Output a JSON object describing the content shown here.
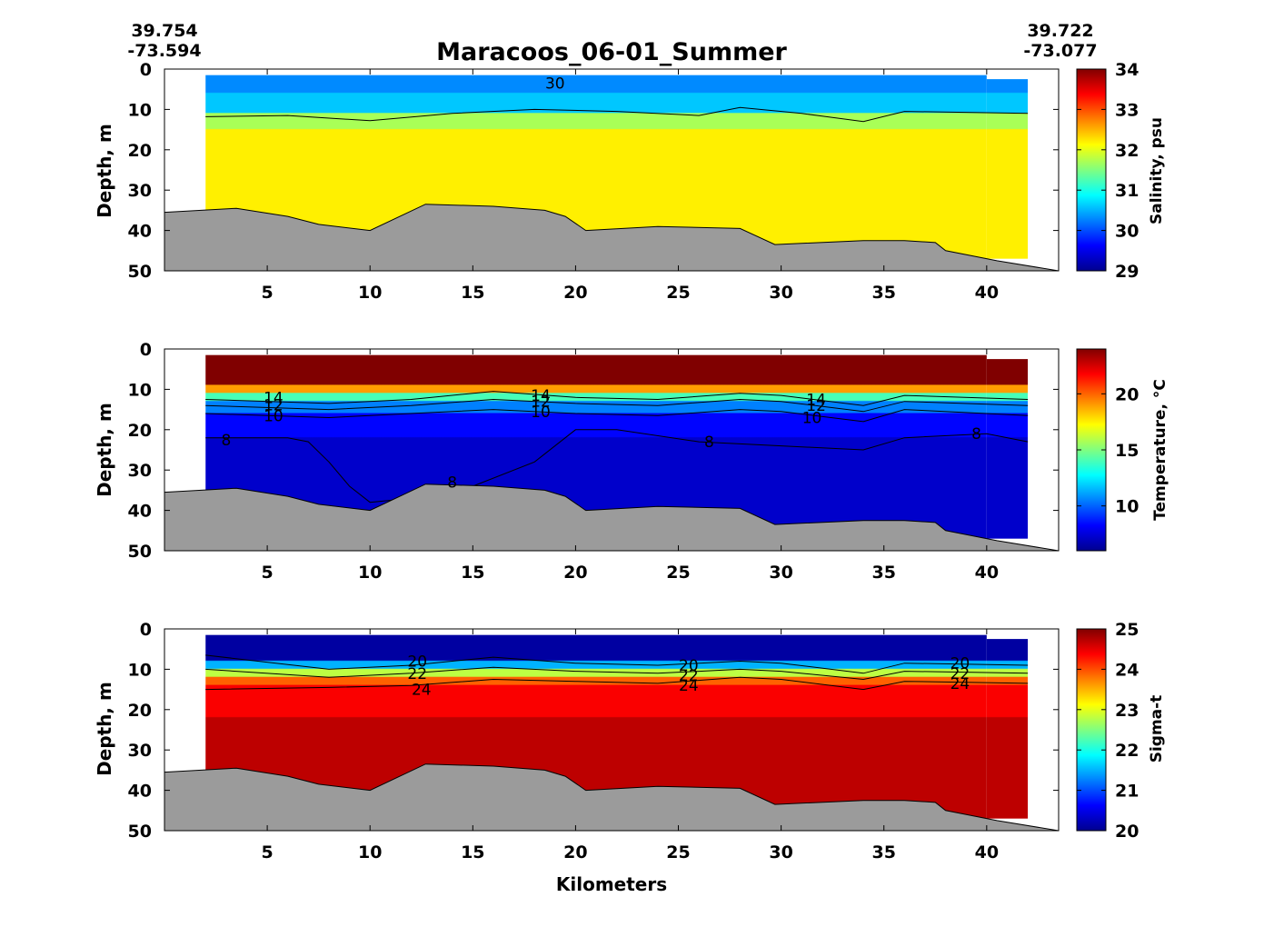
{
  "figure": {
    "title": "Maracoos_06-01_Summer",
    "start_coord": {
      "lat": "39.754",
      "lon": "-73.594"
    },
    "end_coord": {
      "lat": "39.722",
      "lon": "-73.077"
    },
    "xlabel": "Kilometers"
  },
  "colors": {
    "bathymetry_fill": "#9b9b9b",
    "jet_stops": [
      "#00008f",
      "#0000ff",
      "#0080ff",
      "#00ffff",
      "#80ff80",
      "#ffff00",
      "#ff8000",
      "#ff0000",
      "#800000"
    ]
  },
  "chart_data": [
    {
      "type": "heatmap",
      "variable": "salinity",
      "ylabel": "Depth, m",
      "colorbar_label": "Salinity, psu",
      "xlim": [
        0,
        43.5
      ],
      "ylim": [
        0,
        50
      ],
      "y_reversed": true,
      "xticks": [
        5,
        10,
        15,
        20,
        25,
        30,
        35,
        40
      ],
      "yticks": [
        0,
        10,
        20,
        30,
        40,
        50
      ],
      "clim": [
        29,
        34
      ],
      "cticks": [
        29,
        30,
        31,
        32,
        33,
        34
      ],
      "data_x_range": [
        2,
        42
      ],
      "data_top_depth": 1.5,
      "data_bottom_depth": 47,
      "contours": [
        {
          "level": 30,
          "label": "30",
          "depths_x": [
            2,
            6,
            10,
            14,
            18,
            22,
            26,
            28,
            31,
            34,
            36,
            42
          ],
          "depths": [
            11.8,
            11.5,
            12.8,
            11,
            10,
            10.5,
            11.5,
            9.5,
            11,
            13,
            10.5,
            11
          ]
        }
      ],
      "contour_labels": [
        {
          "text": "30",
          "x": 19,
          "depth": 3.5
        }
      ],
      "layers": [
        {
          "top": 0,
          "bottom": 6,
          "value": 30.3
        },
        {
          "top": 6,
          "bottom": 11,
          "value": 30.6
        },
        {
          "top": 11,
          "bottom": 15,
          "value": 31.7
        },
        {
          "top": 15,
          "bottom": 50,
          "value": 32.2
        }
      ]
    },
    {
      "type": "heatmap",
      "variable": "temperature",
      "ylabel": "Depth, m",
      "colorbar_label": "Temperature, °C",
      "xlim": [
        0,
        43.5
      ],
      "ylim": [
        0,
        50
      ],
      "y_reversed": true,
      "xticks": [
        5,
        10,
        15,
        20,
        25,
        30,
        35,
        40
      ],
      "yticks": [
        0,
        10,
        20,
        30,
        40,
        50
      ],
      "clim": [
        6,
        24
      ],
      "cticks": [
        10,
        15,
        20
      ],
      "data_x_range": [
        2,
        42
      ],
      "data_top_depth": 1.5,
      "data_bottom_depth": 47,
      "contours": [
        {
          "level": 14,
          "depths_x": [
            2,
            8,
            12,
            16,
            20,
            24,
            28,
            30,
            34,
            36,
            42
          ],
          "depths": [
            12.5,
            13.5,
            12.5,
            10.5,
            12,
            12.5,
            11,
            11.5,
            14,
            11.5,
            12.5
          ]
        },
        {
          "level": 12,
          "depths_x": [
            2,
            8,
            12,
            16,
            20,
            24,
            28,
            30,
            34,
            36,
            42
          ],
          "depths": [
            14,
            15,
            14,
            12.5,
            13.5,
            14,
            12.5,
            13,
            15.5,
            13,
            14
          ]
        },
        {
          "level": 10,
          "depths_x": [
            2,
            8,
            12,
            16,
            20,
            24,
            28,
            30,
            34,
            36,
            42
          ],
          "depths": [
            16,
            17,
            16,
            15,
            16,
            16.5,
            15,
            15.5,
            18,
            15,
            16.5
          ]
        },
        {
          "level": 8,
          "depths_x": [
            2,
            6,
            7,
            8,
            9,
            10,
            12,
            15,
            18,
            20,
            22,
            26,
            30,
            34,
            36,
            40,
            42
          ],
          "depths": [
            22,
            22,
            23,
            28,
            34,
            38,
            37,
            34,
            28,
            20,
            20,
            23,
            24,
            25,
            22,
            21,
            23
          ]
        }
      ],
      "contour_labels": [
        {
          "text": "14",
          "x": 5.3,
          "depth": 12
        },
        {
          "text": "12",
          "x": 5.3,
          "depth": 13.8
        },
        {
          "text": "10",
          "x": 5.3,
          "depth": 16.5
        },
        {
          "text": "14",
          "x": 18.3,
          "depth": 11.5
        },
        {
          "text": "12",
          "x": 18.3,
          "depth": 13
        },
        {
          "text": "10",
          "x": 18.3,
          "depth": 15.5
        },
        {
          "text": "14",
          "x": 31.7,
          "depth": 12.5
        },
        {
          "text": "12",
          "x": 31.7,
          "depth": 14
        },
        {
          "text": "10",
          "x": 31.5,
          "depth": 17
        },
        {
          "text": "8",
          "x": 3,
          "depth": 22.5
        },
        {
          "text": "8",
          "x": 26.5,
          "depth": 23
        },
        {
          "text": "8",
          "x": 39.5,
          "depth": 21
        },
        {
          "text": "8",
          "x": 14,
          "depth": 33
        }
      ],
      "layers": [
        {
          "top": 0,
          "bottom": 9,
          "value": 24
        },
        {
          "top": 9,
          "bottom": 11,
          "value": 19
        },
        {
          "top": 11,
          "bottom": 13,
          "value": 14
        },
        {
          "top": 13,
          "bottom": 16,
          "value": 10.5
        },
        {
          "top": 16,
          "bottom": 22,
          "value": 8.3
        },
        {
          "top": 22,
          "bottom": 50,
          "value": 7.2
        }
      ]
    },
    {
      "type": "heatmap",
      "variable": "sigma-t",
      "ylabel": "Depth, m",
      "colorbar_label": "Sigma-t",
      "xlim": [
        0,
        43.5
      ],
      "ylim": [
        0,
        50
      ],
      "y_reversed": true,
      "xticks": [
        5,
        10,
        15,
        20,
        25,
        30,
        35,
        40
      ],
      "yticks": [
        0,
        10,
        20,
        30,
        40,
        50
      ],
      "clim": [
        20,
        25
      ],
      "cticks": [
        20,
        21,
        22,
        23,
        24,
        25
      ],
      "data_x_range": [
        2,
        42
      ],
      "data_top_depth": 1.5,
      "data_bottom_depth": 47,
      "contours": [
        {
          "level": 20,
          "depths_x": [
            2,
            8,
            12,
            16,
            20,
            24,
            28,
            30,
            34,
            36,
            42
          ],
          "depths": [
            6.5,
            10,
            9,
            7,
            8.5,
            9,
            8,
            8.5,
            11,
            8.5,
            9
          ]
        },
        {
          "level": 22,
          "depths_x": [
            2,
            8,
            12,
            16,
            20,
            24,
            28,
            30,
            34,
            36,
            42
          ],
          "depths": [
            10,
            12,
            11,
            9.5,
            10.5,
            11,
            10,
            10.5,
            12.5,
            10.5,
            11
          ]
        },
        {
          "level": 24,
          "depths_x": [
            2,
            8,
            12,
            16,
            20,
            24,
            28,
            30,
            34,
            36,
            42
          ],
          "depths": [
            15,
            14.5,
            14,
            12.5,
            13,
            13.5,
            12,
            12.5,
            15,
            13,
            13.5
          ]
        }
      ],
      "contour_labels": [
        {
          "text": "20",
          "x": 12.3,
          "depth": 8
        },
        {
          "text": "22",
          "x": 12.3,
          "depth": 11
        },
        {
          "text": "24",
          "x": 12.5,
          "depth": 15
        },
        {
          "text": "20",
          "x": 25.5,
          "depth": 9
        },
        {
          "text": "22",
          "x": 25.5,
          "depth": 11.5
        },
        {
          "text": "24",
          "x": 25.5,
          "depth": 14
        },
        {
          "text": "20",
          "x": 38.7,
          "depth": 8.5
        },
        {
          "text": "22",
          "x": 38.7,
          "depth": 11
        },
        {
          "text": "24",
          "x": 38.7,
          "depth": 13.5
        }
      ],
      "layers": [
        {
          "top": 0,
          "bottom": 8,
          "value": 20.1
        },
        {
          "top": 8,
          "bottom": 10,
          "value": 21.5
        },
        {
          "top": 10,
          "bottom": 12,
          "value": 22.8
        },
        {
          "top": 12,
          "bottom": 14,
          "value": 23.9
        },
        {
          "top": 14,
          "bottom": 22,
          "value": 24.4
        },
        {
          "top": 22,
          "bottom": 50,
          "value": 24.7
        }
      ]
    }
  ],
  "bathymetry": {
    "x": [
      0,
      3.5,
      6,
      7.5,
      10,
      12.7,
      16,
      18.5,
      19.5,
      20.5,
      24,
      28,
      29.7,
      34,
      36,
      37.5,
      38,
      40.5,
      43.5
    ],
    "depth": [
      35.5,
      34.5,
      36.5,
      38.5,
      40,
      33.5,
      34,
      35,
      36.5,
      40,
      39,
      39.5,
      43.5,
      42.5,
      42.5,
      43,
      45,
      47.5,
      50
    ]
  }
}
